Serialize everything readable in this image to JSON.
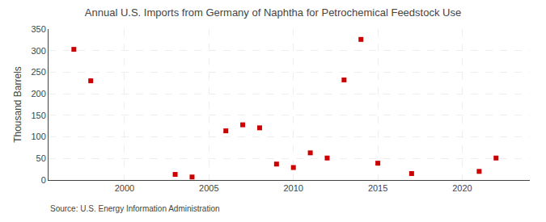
{
  "chart_data": {
    "type": "scatter",
    "title": "Annual U.S. Imports from Germany of Naphtha for Petrochemical Feedstock Use",
    "ylabel": "Thousand Barrels",
    "annotations": [
      "Source: U.S. Energy Information Administration"
    ],
    "x": [
      1997,
      1998,
      2003,
      2004,
      2006,
      2007,
      2008,
      2009,
      2010,
      2011,
      2012,
      2013,
      2014,
      2015,
      2017,
      2021,
      2022
    ],
    "values": [
      303,
      230,
      13,
      7,
      114,
      128,
      121,
      37,
      29,
      63,
      51,
      232,
      326,
      39,
      15,
      20,
      51
    ],
    "color": "#cc0000",
    "marker": "square",
    "xlim": [
      1995.5,
      2024
    ],
    "ylim": [
      0,
      350
    ],
    "xticks": [
      2000,
      2005,
      2010,
      2015,
      2020
    ],
    "yticks": [
      0,
      50,
      100,
      150,
      200,
      250,
      300,
      350
    ],
    "grid": true
  }
}
